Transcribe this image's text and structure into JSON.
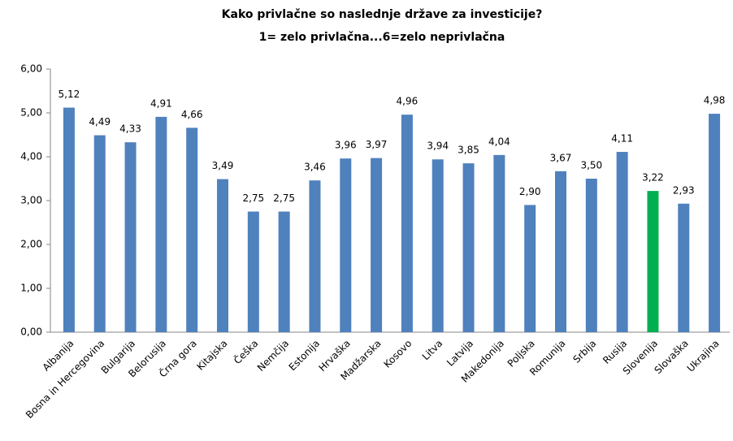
{
  "chart_data": {
    "type": "bar",
    "title": "Kako privlačne so naslednje države za investicije?",
    "subtitle": "1= zelo privlačna...6=zelo neprivlačna",
    "categories": [
      "Albanija",
      "Bosna in Hercegovina",
      "Bulgarija",
      "Belorusija",
      "Črna gora",
      "Kitajska",
      "Češka",
      "Nemčija",
      "Estonija",
      "Hrvaška",
      "Madžarska",
      "Kosovo",
      "Litva",
      "Latvija",
      "Makedonija",
      "Poljska",
      "Romunija",
      "Srbija",
      "Rusija",
      "Slovenija",
      "Slovaška",
      "Ukrajina"
    ],
    "values": [
      5.12,
      4.49,
      4.33,
      4.91,
      4.66,
      3.49,
      2.75,
      2.75,
      3.46,
      3.96,
      3.97,
      4.96,
      3.94,
      3.85,
      4.04,
      2.9,
      3.67,
      3.5,
      4.11,
      3.22,
      2.93,
      4.98
    ],
    "value_labels": [
      "5,12",
      "4,49",
      "4,33",
      "4,91",
      "4,66",
      "3,49",
      "2,75",
      "2,75",
      "3,46",
      "3,96",
      "3,97",
      "4,96",
      "3,94",
      "3,85",
      "4,04",
      "2,90",
      "3,67",
      "3,50",
      "4,11",
      "3,22",
      "2,93",
      "4,98"
    ],
    "colors": [
      "#4f81bd",
      "#4f81bd",
      "#4f81bd",
      "#4f81bd",
      "#4f81bd",
      "#4f81bd",
      "#4f81bd",
      "#4f81bd",
      "#4f81bd",
      "#4f81bd",
      "#4f81bd",
      "#4f81bd",
      "#4f81bd",
      "#4f81bd",
      "#4f81bd",
      "#4f81bd",
      "#4f81bd",
      "#4f81bd",
      "#4f81bd",
      "#00b050",
      "#4f81bd",
      "#4f81bd"
    ],
    "ylim": [
      0,
      6
    ],
    "yticks": [
      {
        "value": 0,
        "label": "0,00"
      },
      {
        "value": 1,
        "label": "1,00"
      },
      {
        "value": 2,
        "label": "2,00"
      },
      {
        "value": 3,
        "label": "3,00"
      },
      {
        "value": 4,
        "label": "4,00"
      },
      {
        "value": 5,
        "label": "5,00"
      },
      {
        "value": 6,
        "label": "6,00"
      }
    ],
    "grid": false
  }
}
